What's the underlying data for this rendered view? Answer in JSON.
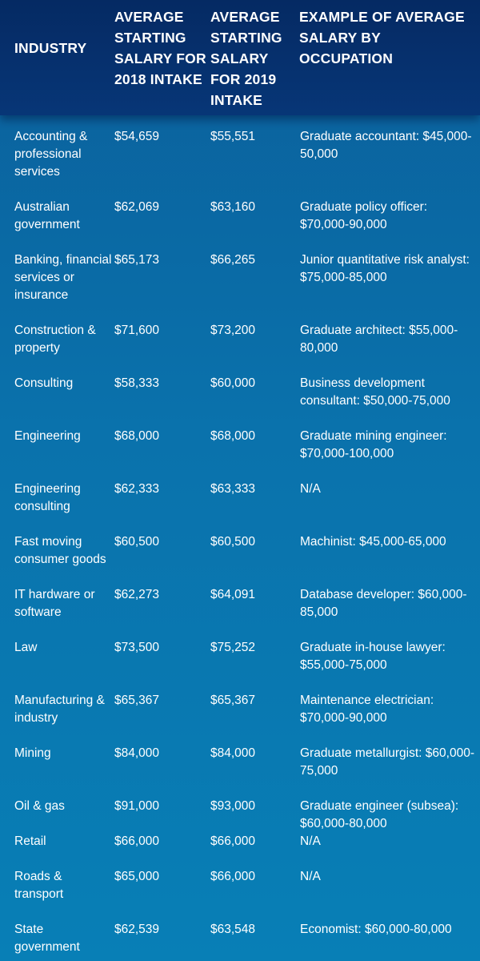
{
  "header": {
    "industry": "INDUSTRY",
    "salary_2018": "AVERAGE STARTING SALARY FOR 2018 INTAKE",
    "salary_2019": "AVERAGE STARTING SALARY FOR 2019 INTAKE",
    "example": "EXAMPLE OF AVERAGE SALARY BY OCCUPATION"
  },
  "rows": [
    {
      "industry": "Accounting & professional services",
      "s2018": "$54,659",
      "s2019": "$55,551",
      "example": "Graduate accountant: $45,000-50,000"
    },
    {
      "industry": "Australian government",
      "s2018": "$62,069",
      "s2019": "$63,160",
      "example": "Graduate policy officer: $70,000-90,000"
    },
    {
      "industry": "Banking, financial services or insurance",
      "s2018": "$65,173",
      "s2019": "$66,265",
      "example": "Junior quantitative risk analyst: $75,000-85,000"
    },
    {
      "industry": "Construction & property",
      "s2018": "$71,600",
      "s2019": "$73,200",
      "example": "Graduate architect: $55,000-80,000"
    },
    {
      "industry": "Consulting",
      "s2018": "$58,333",
      "s2019": "$60,000",
      "example": "Business development consultant: $50,000-75,000"
    },
    {
      "industry": "Engineering",
      "s2018": "$68,000",
      "s2019": "$68,000",
      "example": "Graduate mining engineer: $70,000-100,000"
    },
    {
      "industry": "Engineering consulting",
      "s2018": "$62,333",
      "s2019": "$63,333",
      "example": "N/A"
    },
    {
      "industry": "Fast moving consumer goods",
      "s2018": "$60,500",
      "s2019": "$60,500",
      "example": "Machinist: $45,000-65,000"
    },
    {
      "industry": "IT hardware or software",
      "s2018": "$62,273",
      "s2019": "$64,091",
      "example": "Database developer: $60,000-85,000"
    },
    {
      "industry": "Law",
      "s2018": "$73,500",
      "s2019": "$75,252",
      "example": "Graduate in-house lawyer: $55,000-75,000"
    },
    {
      "industry": "Manufacturing & industry",
      "s2018": "$65,367",
      "s2019": "$65,367",
      "example": "Maintenance electrician: $70,000-90,000"
    },
    {
      "industry": "Mining",
      "s2018": "$84,000",
      "s2019": "$84,000",
      "example": "Graduate metallurgist: $60,000-75,000"
    },
    {
      "industry": "Oil & gas",
      "s2018": "$91,000",
      "s2019": "$93,000",
      "example": "Graduate engineer (subsea): $60,000-80,000"
    },
    {
      "industry": "Retail",
      "s2018": "$66,000",
      "s2019": "$66,000",
      "example": "N/A"
    },
    {
      "industry": "Roads & transport",
      "s2018": "$65,000",
      "s2019": "$66,000",
      "example": "N/A"
    },
    {
      "industry": "State government",
      "s2018": "$62,539",
      "s2019": "$63,548",
      "example": "Economist: $60,000-80,000"
    }
  ]
}
